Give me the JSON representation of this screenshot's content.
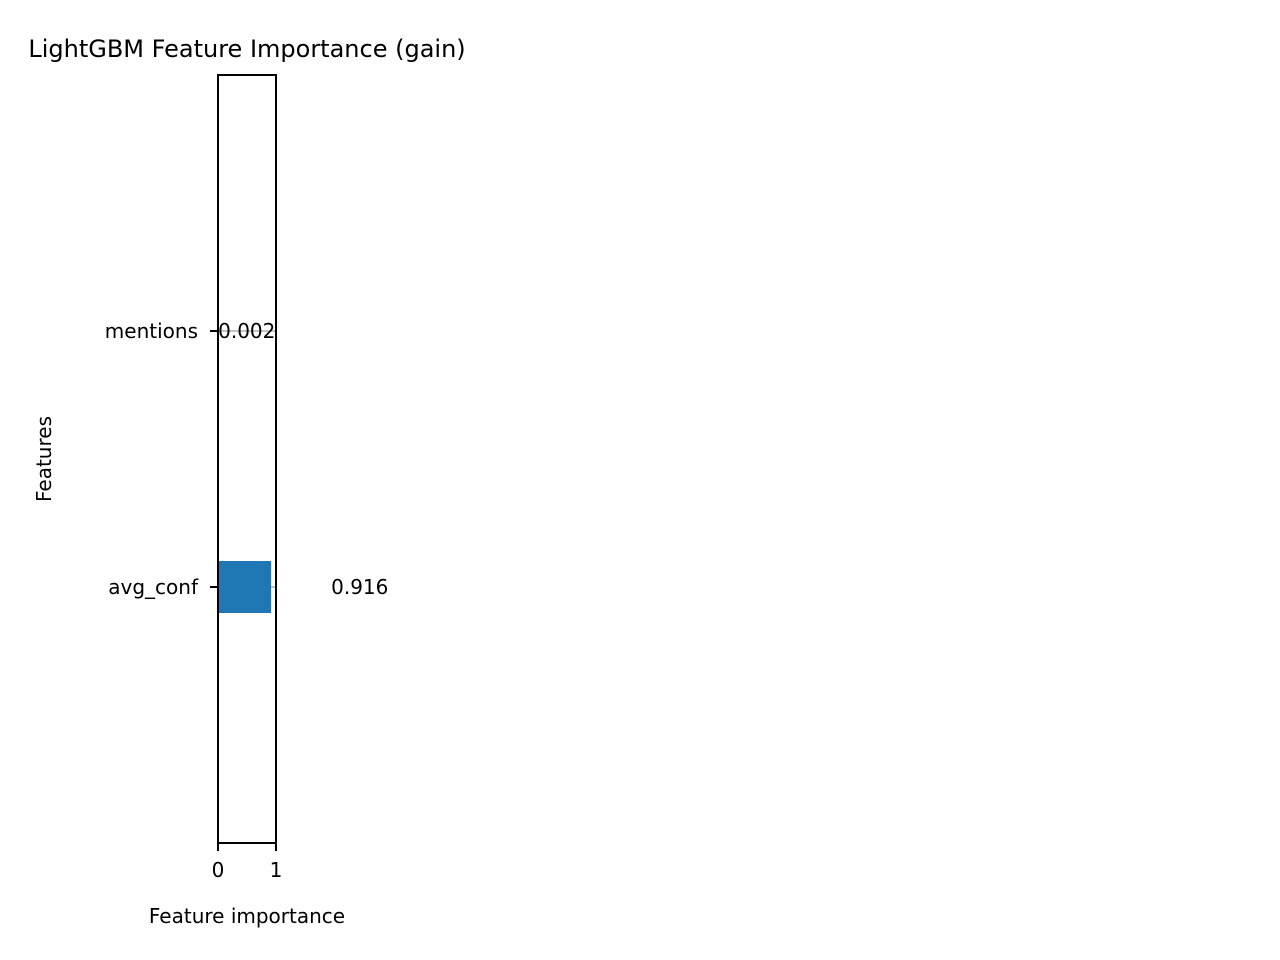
{
  "chart_data": {
    "type": "bar",
    "orientation": "horizontal",
    "title": "LightGBM Feature Importance (gain)",
    "xlabel": "Feature importance",
    "ylabel": "Features",
    "categories": [
      "avg_conf",
      "mentions"
    ],
    "values": [
      0.916,
      0.002
    ],
    "value_labels": [
      "0.916",
      "0.002"
    ],
    "xlim": [
      0,
      1
    ],
    "xticks": [
      0,
      1
    ],
    "xtick_labels": [
      "0",
      "1"
    ],
    "ylim": [
      -1,
      2
    ],
    "grid": true,
    "bar_color": "#1f77b4",
    "grid_color": "#b0b0b0"
  }
}
